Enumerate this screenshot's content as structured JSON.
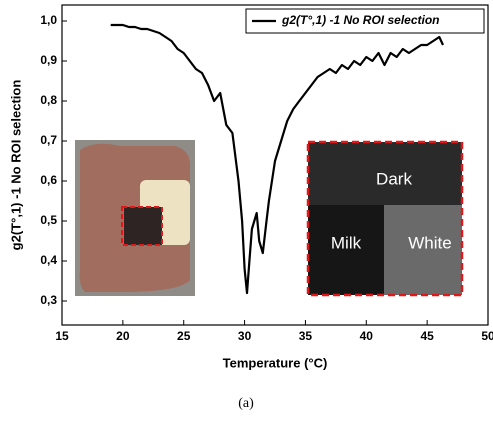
{
  "chart_data": {
    "type": "line",
    "x_label": "Temperature (°C)",
    "y_label": "g2(T°,1) -1  No ROI selection",
    "caption": "(a)",
    "inset_labels": [
      "Dark",
      "Milk",
      "White"
    ],
    "xlim": [
      15,
      50
    ],
    "xticks": [
      15,
      20,
      25,
      30,
      35,
      40,
      45,
      50
    ],
    "ylim": [
      0.24,
      1.04
    ],
    "yticks": [
      {
        "value": 0.3,
        "label": "0,3"
      },
      {
        "value": 0.4,
        "label": "0,4"
      },
      {
        "value": 0.5,
        "label": "0,5"
      },
      {
        "value": 0.6,
        "label": "0,6"
      },
      {
        "value": 0.7,
        "label": "0,7"
      },
      {
        "value": 0.8,
        "label": "0,8"
      },
      {
        "value": 0.9,
        "label": "0,9"
      },
      {
        "value": 1.0,
        "label": "1,0"
      }
    ],
    "x": [
      19,
      19.5,
      20,
      20.5,
      21,
      21.5,
      22,
      22.5,
      23,
      23.5,
      24,
      24.5,
      25,
      25.5,
      26,
      26.5,
      27,
      27.5,
      28,
      28.5,
      29,
      29.5,
      29.8,
      30,
      30.2,
      30.4,
      30.6,
      30.8,
      31,
      31.2,
      31.5,
      31.8,
      32,
      32.5,
      33,
      33.5,
      34,
      34.5,
      35,
      35.5,
      36,
      36.5,
      37,
      37.5,
      38,
      38.5,
      39,
      39.5,
      40,
      40.5,
      41,
      41.5,
      42,
      42.5,
      43,
      43.5,
      44,
      44.5,
      45,
      45.5,
      46,
      46.3
    ],
    "series": [
      {
        "name": "g2(T°,1) -1 No ROI selection",
        "color": "#000000",
        "values": [
          0.99,
          0.99,
          0.99,
          0.985,
          0.985,
          0.98,
          0.98,
          0.975,
          0.97,
          0.96,
          0.95,
          0.93,
          0.92,
          0.9,
          0.88,
          0.87,
          0.84,
          0.8,
          0.82,
          0.74,
          0.72,
          0.6,
          0.5,
          0.38,
          0.32,
          0.4,
          0.48,
          0.5,
          0.52,
          0.45,
          0.42,
          0.5,
          0.55,
          0.65,
          0.7,
          0.75,
          0.78,
          0.8,
          0.82,
          0.84,
          0.86,
          0.87,
          0.88,
          0.87,
          0.89,
          0.88,
          0.9,
          0.89,
          0.91,
          0.9,
          0.92,
          0.89,
          0.92,
          0.91,
          0.93,
          0.92,
          0.93,
          0.94,
          0.94,
          0.95,
          0.96,
          0.94
        ]
      }
    ],
    "legend": "upper right"
  }
}
